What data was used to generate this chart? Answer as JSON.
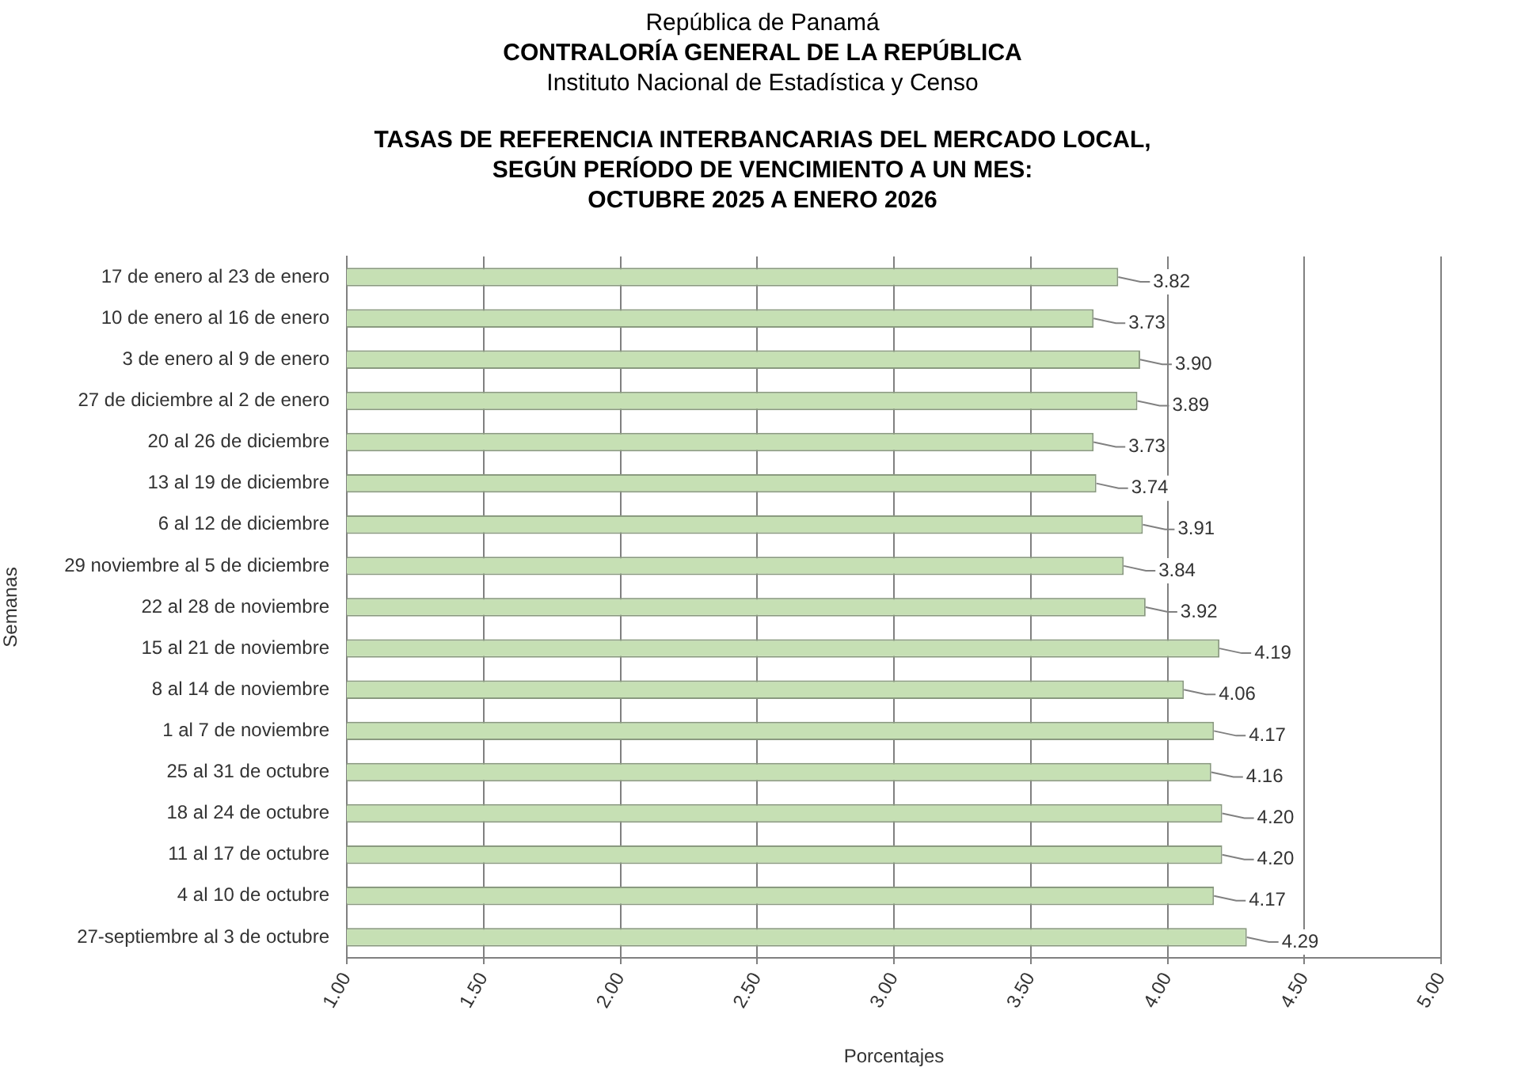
{
  "chart_data": {
    "type": "bar",
    "orientation": "horizontal",
    "subtitle": "República de Panamá\nCONTRALORÍA GENERAL DE LA REPÚBLICA\nInstituto  Nacional de Estadística y Censo",
    "title": "TASAS DE REFERENCIA INTERBANCARIAS DEL MERCADO LOCAL,\nSEGÚN PERÍODO DE VENCIMIENTO A UN MES:\nOCTUBRE 2025 A ENERO 2026",
    "xlabel": "Porcentajes",
    "ylabel": "Semanas",
    "categories": [
      "17 de enero al 23 de enero",
      "10 de enero al 16 de enero",
      "3 de enero al 9 de enero",
      "27 de diciembre al 2 de enero",
      "20 al 26 de diciembre",
      "13 al 19 de diciembre",
      "6 al 12 de diciembre",
      "29 noviembre al 5 de diciembre",
      "22 al 28 de noviembre",
      "15 al 21 de noviembre",
      "8 al 14 de noviembre",
      "1 al 7 de noviembre",
      "25 al 31 de octubre",
      "18 al 24 de octubre",
      "11 al 17 de octubre",
      "4 al 10 de octubre",
      "27-septiembre al 3 de octubre"
    ],
    "values": [
      3.82,
      3.73,
      3.9,
      3.89,
      3.73,
      3.74,
      3.91,
      3.84,
      3.92,
      4.19,
      4.06,
      4.17,
      4.16,
      4.2,
      4.2,
      4.17,
      4.29
    ],
    "value_labels": [
      "3.82",
      "3.73",
      "3.90",
      "3.89",
      "3.73",
      "3.74",
      "3.91",
      "3.84",
      "3.92",
      "4.19",
      "4.06",
      "4.17",
      "4.16",
      "4.20",
      "4.20",
      "4.17",
      "4.29"
    ],
    "color": "#c6e0b4",
    "xlim": [
      1,
      5
    ],
    "xticks": [
      {
        "value": 1,
        "label": "1.00"
      },
      {
        "value": 1.5,
        "label": "1.50"
      },
      {
        "value": 2,
        "label": "2.00"
      },
      {
        "value": 2.5,
        "label": "2.50"
      },
      {
        "value": 3,
        "label": "3.00"
      },
      {
        "value": 3.5,
        "label": "3.50"
      },
      {
        "value": 4,
        "label": "4.00"
      },
      {
        "value": 4.5,
        "label": "4.50"
      },
      {
        "value": 5,
        "label": "5.00"
      }
    ],
    "grid": "x",
    "legend": false
  }
}
